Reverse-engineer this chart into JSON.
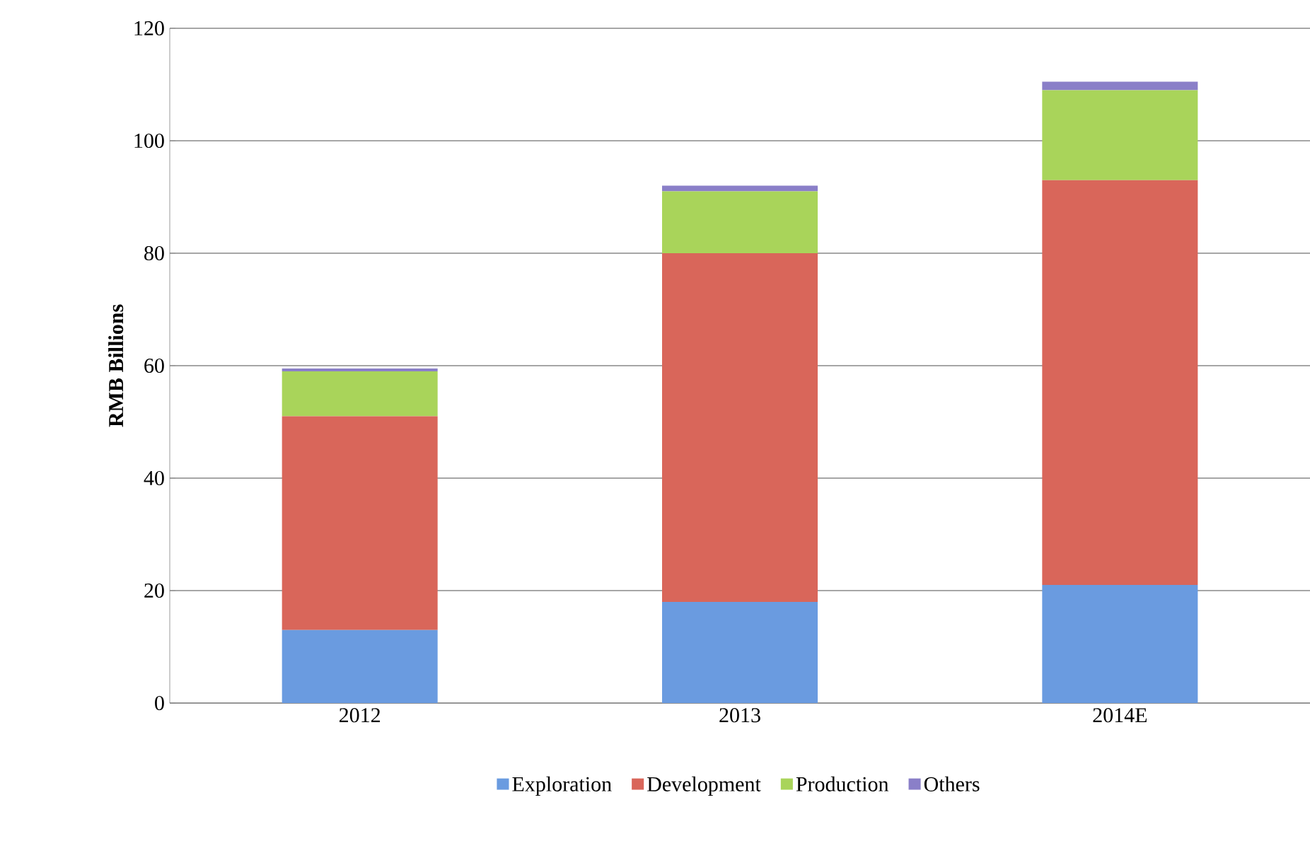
{
  "chart_data": {
    "type": "bar",
    "stacked": true,
    "ylabel": "RMB Billions",
    "categories": [
      "2012",
      "2013",
      "2014E"
    ],
    "series": [
      {
        "name": "Exploration",
        "color": "#6a9be0",
        "values": [
          13,
          18,
          21
        ]
      },
      {
        "name": "Development",
        "color": "#d9665a",
        "values": [
          38,
          62,
          72
        ]
      },
      {
        "name": "Production",
        "color": "#a9d45a",
        "values": [
          8,
          11,
          16
        ]
      },
      {
        "name": "Others",
        "color": "#8a7fc8",
        "values": [
          0.5,
          1,
          1.5
        ]
      }
    ],
    "ylim": [
      0,
      120
    ],
    "yticks": [
      0,
      20,
      40,
      60,
      80,
      100,
      120
    ],
    "grid": "y",
    "legend": "bottom"
  }
}
